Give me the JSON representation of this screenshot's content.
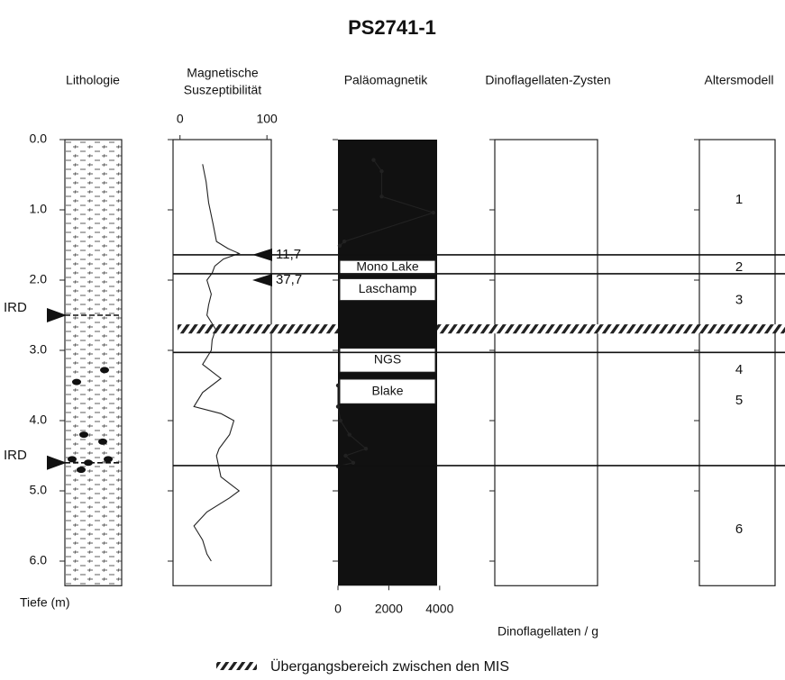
{
  "title": "PS2741-1",
  "headings": {
    "lithology": "Lithologie",
    "susceptibility": [
      "Magnetische",
      "Suszeptibilität"
    ],
    "paleomagnetics": "Paläomagnetik",
    "dinocysts": "Dinoflagellaten-Zysten",
    "age_model": "Altersmodell"
  },
  "depth_axis": {
    "label": "Tiefe (m)",
    "lim": [
      0,
      6.35
    ],
    "ticks": [
      {
        "value": 0,
        "label": "0.0"
      },
      {
        "value": 1,
        "label": "1.0"
      },
      {
        "value": 2,
        "label": "2.0"
      },
      {
        "value": 3,
        "label": "3.0"
      },
      {
        "value": 4,
        "label": "4.0"
      },
      {
        "value": 5,
        "label": "5.0"
      },
      {
        "value": 6,
        "label": "6.0"
      }
    ]
  },
  "chart_data": [
    {
      "type": "line",
      "color": "#222",
      "xlim": [
        -8,
        105
      ],
      "xticks": [
        0,
        100
      ],
      "x": [
        0.35,
        0.6,
        0.9,
        1.2,
        1.45,
        1.55,
        1.62,
        1.7,
        1.8,
        1.9,
        2.0,
        2.2,
        2.35,
        2.5,
        2.7,
        2.85,
        3.0,
        3.2,
        3.4,
        3.6,
        3.8,
        3.9,
        4.0,
        4.2,
        4.4,
        4.5,
        4.8,
        5.0,
        5.1,
        5.3,
        5.5,
        5.7,
        5.9,
        6.0
      ],
      "values": [
        26,
        30,
        33,
        38,
        42,
        55,
        68,
        50,
        40,
        37,
        31,
        36,
        33,
        31,
        41,
        37,
        36,
        26,
        47,
        26,
        16,
        47,
        62,
        57,
        45,
        42,
        47,
        68,
        57,
        31,
        16,
        26,
        31,
        36
      ]
    },
    {
      "type": "line",
      "color": "#222",
      "markers": true,
      "xlim": [
        0,
        3900
      ],
      "xticks": [
        0,
        2000,
        4000
      ],
      "x_label": "Dinoflagellaten / g",
      "x": [
        0.29,
        0.45,
        0.81,
        1.04,
        1.45,
        1.51,
        2.5,
        3.5,
        3.8,
        4.0,
        4.2,
        4.4,
        4.5,
        4.6,
        4.65
      ],
      "values": [
        1400,
        1720,
        1720,
        3750,
        250,
        70,
        null,
        0,
        0,
        100,
        450,
        1100,
        300,
        600,
        0
      ]
    }
  ],
  "paleomag_events": [
    {
      "label": "Mono Lake",
      "top": 1.72,
      "bottom": 1.92
    },
    {
      "label": "Laschamp",
      "top": 1.98,
      "bottom": 2.29
    },
    {
      "label": "NGS",
      "top": 2.97,
      "bottom": 3.31
    },
    {
      "label": "Blake",
      "top": 3.41,
      "bottom": 3.76
    }
  ],
  "boundaries": [
    1.64,
    1.91,
    3.03,
    4.64
  ],
  "age_markers": [
    {
      "depth": 1.64,
      "label": "11,7"
    },
    {
      "depth": 2.0,
      "label": "37,7"
    }
  ],
  "ird_markers": [
    {
      "depth": 2.5,
      "label": "IRD"
    },
    {
      "depth": 4.6,
      "label": "IRD"
    }
  ],
  "transition_band": [
    2.63,
    2.76
  ],
  "stages": [
    {
      "label": "1",
      "depth": 0.86
    },
    {
      "label": "2",
      "depth": 1.82
    },
    {
      "label": "3",
      "depth": 2.29
    },
    {
      "label": "4",
      "depth": 3.28
    },
    {
      "label": "5",
      "depth": 3.72
    },
    {
      "label": "6",
      "depth": 5.55
    }
  ],
  "legend": "Übergangsbereich zwischen den MIS"
}
